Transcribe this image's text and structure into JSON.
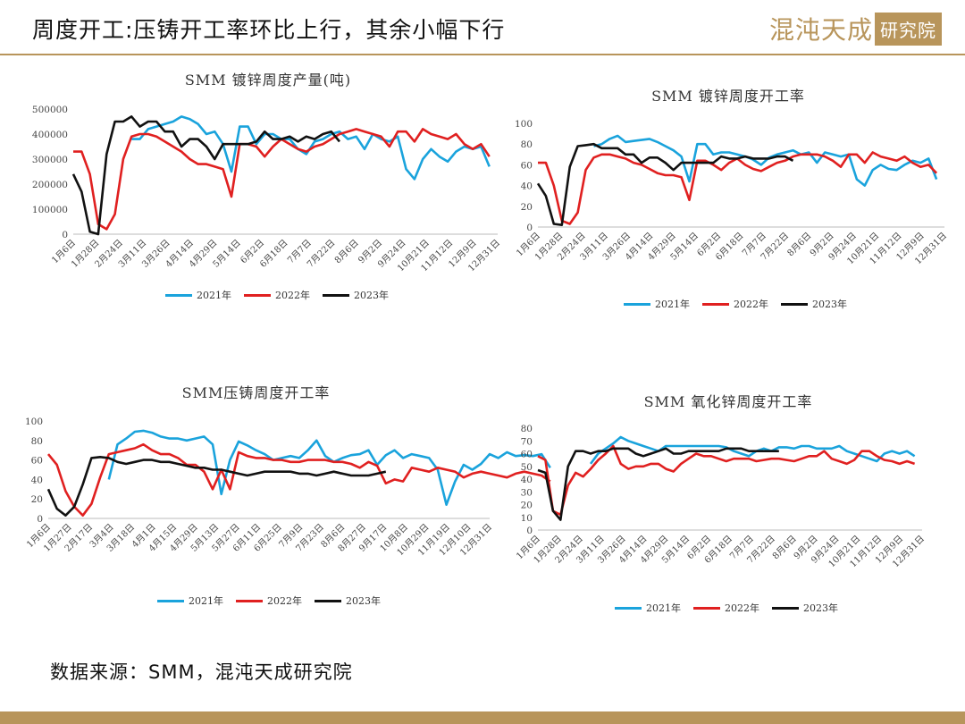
{
  "header": {
    "title": "周度开工:压铸开工率环比上行，其余小幅下行",
    "logo_script": "混沌天成",
    "logo_box": "研究院"
  },
  "source": "数据来源：SMM，混沌天成研究院",
  "colors": {
    "2021": "#1aa3dc",
    "2022": "#e02020",
    "2023": "#111111",
    "accent": "#b8955b"
  },
  "chart_data": [
    {
      "id": "galv_output",
      "type": "line",
      "title": "SMM 镀锌周度产量(吨)",
      "ylim": [
        0,
        500000
      ],
      "yticks": [
        "0",
        "100000",
        "200000",
        "300000",
        "400000",
        "500000"
      ],
      "xticks": [
        "1月6日",
        "1月28日",
        "2月24日",
        "3月11日",
        "3月26日",
        "4月14日",
        "4月29日",
        "5月14日",
        "6月2日",
        "6月18日",
        "7月7日",
        "7月22日",
        "8月6日",
        "9月2日",
        "9月24日",
        "10月21日",
        "11月12日",
        "12月9日",
        "12月31日"
      ],
      "legend": [
        "2021年",
        "2022年",
        "2023年"
      ],
      "series": [
        {
          "name": "2021年",
          "values": [
            null,
            null,
            null,
            null,
            null,
            null,
            null,
            380000,
            380000,
            420000,
            430000,
            440000,
            450000,
            470000,
            460000,
            440000,
            400000,
            410000,
            360000,
            250000,
            430000,
            430000,
            360000,
            400000,
            400000,
            380000,
            380000,
            340000,
            320000,
            370000,
            380000,
            400000,
            410000,
            380000,
            390000,
            340000,
            400000,
            380000,
            370000,
            390000,
            260000,
            220000,
            300000,
            340000,
            310000,
            290000,
            330000,
            350000,
            340000,
            350000,
            270000
          ]
        },
        {
          "name": "2022年",
          "values": [
            330000,
            330000,
            240000,
            40000,
            20000,
            80000,
            300000,
            390000,
            400000,
            400000,
            390000,
            370000,
            350000,
            330000,
            300000,
            280000,
            280000,
            270000,
            260000,
            150000,
            360000,
            360000,
            350000,
            310000,
            350000,
            380000,
            360000,
            340000,
            330000,
            350000,
            360000,
            380000,
            400000,
            410000,
            420000,
            410000,
            400000,
            390000,
            350000,
            410000,
            410000,
            370000,
            420000,
            400000,
            390000,
            380000,
            400000,
            360000,
            340000,
            360000,
            310000
          ]
        },
        {
          "name": "2023年",
          "values": [
            240000,
            170000,
            10000,
            0,
            320000,
            450000,
            450000,
            470000,
            430000,
            450000,
            450000,
            410000,
            410000,
            350000,
            380000,
            380000,
            350000,
            300000,
            360000,
            360000,
            360000,
            360000,
            370000,
            410000,
            380000,
            380000,
            390000,
            370000,
            390000,
            380000,
            400000,
            410000,
            370000
          ]
        }
      ]
    },
    {
      "id": "galv_rate",
      "type": "line",
      "title": "SMM 镀锌周度开工率",
      "ylim": [
        0,
        100
      ],
      "yticks": [
        "0",
        "20",
        "40",
        "60",
        "80",
        "100"
      ],
      "xticks": [
        "1月6日",
        "1月28日",
        "2月24日",
        "3月11日",
        "3月26日",
        "4月14日",
        "4月29日",
        "5月14日",
        "6月2日",
        "6月18日",
        "7月7日",
        "7月22日",
        "8月6日",
        "9月2日",
        "9月24日",
        "10月21日",
        "11月12日",
        "12月9日",
        "12月31日"
      ],
      "legend": [
        "2021年",
        "2022年",
        "2023年"
      ],
      "series": [
        {
          "name": "2021年",
          "values": [
            null,
            null,
            null,
            null,
            null,
            null,
            null,
            78,
            80,
            85,
            88,
            82,
            83,
            84,
            85,
            82,
            78,
            74,
            68,
            44,
            80,
            80,
            70,
            72,
            72,
            70,
            68,
            65,
            60,
            67,
            70,
            72,
            74,
            70,
            72,
            62,
            72,
            70,
            68,
            70,
            46,
            40,
            55,
            60,
            56,
            55,
            60,
            64,
            62,
            66,
            46
          ]
        },
        {
          "name": "2022年",
          "values": [
            62,
            62,
            40,
            6,
            3,
            14,
            55,
            67,
            70,
            70,
            68,
            66,
            62,
            60,
            56,
            52,
            50,
            50,
            48,
            26,
            64,
            64,
            60,
            55,
            62,
            66,
            60,
            56,
            54,
            58,
            62,
            64,
            68,
            70,
            70,
            70,
            68,
            64,
            58,
            70,
            70,
            62,
            72,
            68,
            66,
            64,
            68,
            62,
            58,
            60,
            52
          ]
        },
        {
          "name": "2023年",
          "values": [
            42,
            30,
            3,
            2,
            58,
            78,
            79,
            80,
            76,
            76,
            76,
            70,
            70,
            62,
            67,
            67,
            62,
            55,
            62,
            62,
            62,
            62,
            62,
            68,
            66,
            66,
            68,
            66,
            66,
            66,
            68,
            68,
            64
          ]
        }
      ]
    },
    {
      "id": "die_cast_rate",
      "type": "line",
      "title": "SMM压铸周度开工率",
      "ylim": [
        0,
        100
      ],
      "yticks": [
        "0",
        "20",
        "40",
        "60",
        "80",
        "100"
      ],
      "xticks": [
        "1月6日",
        "1月27日",
        "2月17日",
        "3月4日",
        "3月18日",
        "4月1日",
        "4月15日",
        "4月29日",
        "5月13日",
        "5月27日",
        "6月11日",
        "6月25日",
        "7月9日",
        "7月23日",
        "8月6日",
        "8月27日",
        "9月17日",
        "10月8日",
        "10月29日",
        "11月19日",
        "12月10日",
        "12月31日"
      ],
      "legend": [
        "2021年",
        "2022年",
        "2023年"
      ],
      "series": [
        {
          "name": "2021年",
          "values": [
            null,
            null,
            null,
            null,
            null,
            null,
            null,
            40,
            76,
            82,
            89,
            90,
            88,
            84,
            82,
            82,
            80,
            82,
            84,
            76,
            25,
            60,
            79,
            75,
            70,
            66,
            60,
            62,
            64,
            62,
            70,
            80,
            64,
            58,
            62,
            65,
            66,
            70,
            55,
            65,
            70,
            62,
            66,
            64,
            62,
            50,
            14,
            38,
            55,
            50,
            56,
            66,
            62,
            68,
            64,
            65,
            64,
            66,
            52
          ]
        },
        {
          "name": "2022年",
          "values": [
            66,
            55,
            28,
            12,
            3,
            15,
            42,
            66,
            68,
            70,
            72,
            76,
            70,
            66,
            66,
            62,
            55,
            55,
            48,
            30,
            50,
            30,
            68,
            64,
            62,
            62,
            60,
            60,
            58,
            58,
            60,
            60,
            60,
            58,
            58,
            56,
            52,
            58,
            54,
            36,
            40,
            38,
            52,
            50,
            48,
            52,
            50,
            48,
            42,
            46,
            48,
            46,
            44,
            42,
            46,
            48,
            46,
            44,
            38
          ]
        },
        {
          "name": "2023年",
          "values": [
            30,
            10,
            3,
            12,
            35,
            62,
            63,
            62,
            58,
            56,
            58,
            60,
            60,
            58,
            58,
            56,
            54,
            52,
            52,
            50,
            50,
            48,
            46,
            44,
            46,
            48,
            48,
            48,
            48,
            46,
            46,
            44,
            46,
            48,
            46,
            44,
            44,
            44,
            46,
            48
          ]
        }
      ]
    },
    {
      "id": "zinc_oxide_rate",
      "type": "line",
      "title": "SMM 氧化锌周度开工率",
      "ylim": [
        0,
        80
      ],
      "yticks": [
        "0",
        "10",
        "20",
        "30",
        "40",
        "50",
        "60",
        "70",
        "80"
      ],
      "xticks": [
        "1月6日",
        "1月28日",
        "2月24日",
        "3月11日",
        "3月26日",
        "4月14日",
        "4月29日",
        "5月14日",
        "6月2日",
        "6月18日",
        "7月7日",
        "7月22日",
        "8月6日",
        "9月2日",
        "9月24日",
        "10月21日",
        "11月12日",
        "12月9日",
        "12月31日"
      ],
      "legend": [
        "2021年",
        "2022年",
        "2023年"
      ],
      "series": [
        {
          "name": "2021年",
          "values": [
            null,
            null,
            null,
            null,
            null,
            null,
            null,
            52,
            60,
            64,
            68,
            73,
            70,
            68,
            66,
            64,
            62,
            66,
            66,
            66,
            66,
            66,
            66,
            66,
            66,
            65,
            62,
            60,
            58,
            62,
            64,
            62,
            65,
            65,
            64,
            66,
            66,
            64,
            64,
            64,
            66,
            62,
            60,
            58,
            56,
            54,
            60,
            62,
            60,
            62,
            58
          ]
        },
        {
          "name": "2022年",
          "values": [
            58,
            55,
            15,
            12,
            35,
            45,
            42,
            48,
            55,
            60,
            66,
            52,
            48,
            50,
            50,
            52,
            52,
            48,
            46,
            52,
            56,
            60,
            58,
            58,
            56,
            54,
            56,
            56,
            56,
            54,
            55,
            56,
            56,
            55,
            54,
            56,
            58,
            58,
            62,
            56,
            54,
            52,
            55,
            62,
            62,
            58,
            55,
            54,
            52,
            54,
            52
          ]
        },
        {
          "name": "2023年",
          "values": [
            47,
            45,
            15,
            8,
            50,
            62,
            62,
            60,
            62,
            62,
            64,
            64,
            64,
            60,
            58,
            60,
            62,
            64,
            60,
            60,
            62,
            62,
            62,
            62,
            62,
            64,
            64,
            64,
            62,
            62,
            62,
            62,
            62
          ]
        }
      ]
    }
  ]
}
